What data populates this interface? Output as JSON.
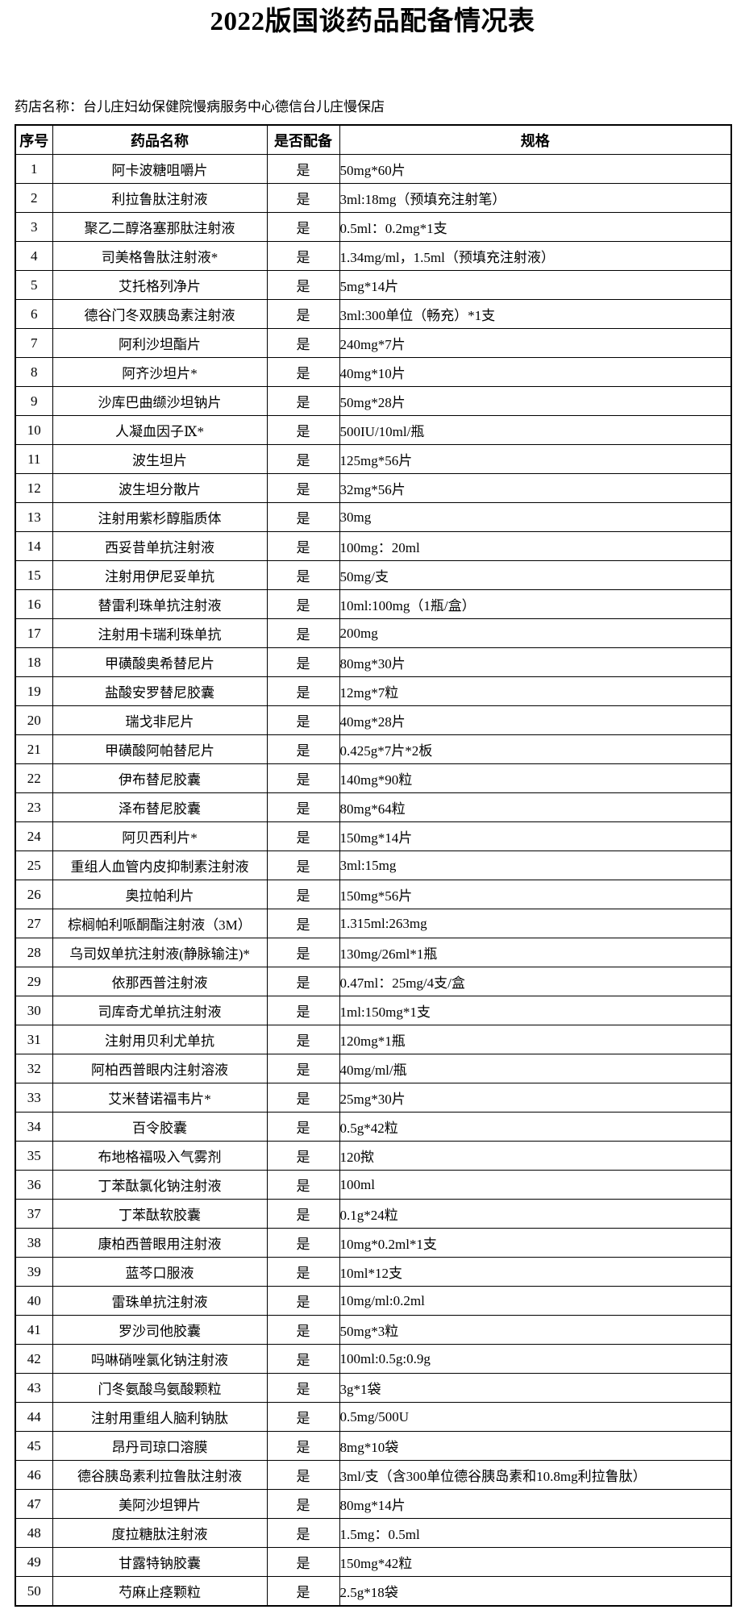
{
  "title": "2022版国谈药品配备情况表",
  "pharmacy_line": "药店名称：台儿庄妇幼保健院慢病服务中心德信台儿庄慢保店",
  "table": {
    "headers": [
      "序号",
      "药品名称",
      "是否配备",
      "规格"
    ],
    "rows": [
      {
        "no": "1",
        "name": "阿卡波糖咀嚼片",
        "equipped": "是",
        "spec": "50mg*60片"
      },
      {
        "no": "2",
        "name": "利拉鲁肽注射液",
        "equipped": "是",
        "spec": "3ml:18mg（预填充注射笔）"
      },
      {
        "no": "3",
        "name": "聚乙二醇洛塞那肽注射液",
        "equipped": "是",
        "spec": "0.5ml：0.2mg*1支"
      },
      {
        "no": "4",
        "name": "司美格鲁肽注射液*",
        "equipped": "是",
        "spec": "1.34mg/ml，1.5ml（预填充注射液）"
      },
      {
        "no": "5",
        "name": "艾托格列净片",
        "equipped": "是",
        "spec": "5mg*14片"
      },
      {
        "no": "6",
        "name": "德谷门冬双胰岛素注射液",
        "equipped": "是",
        "spec": "3ml:300单位（畅充）*1支"
      },
      {
        "no": "7",
        "name": "阿利沙坦酯片",
        "equipped": "是",
        "spec": "240mg*7片"
      },
      {
        "no": "8",
        "name": "阿齐沙坦片*",
        "equipped": "是",
        "spec": "40mg*10片"
      },
      {
        "no": "9",
        "name": "沙库巴曲缬沙坦钠片",
        "equipped": "是",
        "spec": "50mg*28片"
      },
      {
        "no": "10",
        "name": "人凝血因子Ⅸ*",
        "equipped": "是",
        "spec": "500IU/10ml/瓶"
      },
      {
        "no": "11",
        "name": "波生坦片",
        "equipped": "是",
        "spec": "125mg*56片"
      },
      {
        "no": "12",
        "name": "波生坦分散片",
        "equipped": "是",
        "spec": "32mg*56片"
      },
      {
        "no": "13",
        "name": "注射用紫杉醇脂质体",
        "equipped": "是",
        "spec": "30mg"
      },
      {
        "no": "14",
        "name": "西妥昔单抗注射液",
        "equipped": "是",
        "spec": "100mg：20ml"
      },
      {
        "no": "15",
        "name": "注射用伊尼妥单抗",
        "equipped": "是",
        "spec": "50mg/支"
      },
      {
        "no": "16",
        "name": "替雷利珠单抗注射液",
        "equipped": "是",
        "spec": "10ml:100mg（1瓶/盒）"
      },
      {
        "no": "17",
        "name": "注射用卡瑞利珠单抗",
        "equipped": "是",
        "spec": "200mg"
      },
      {
        "no": "18",
        "name": "甲磺酸奥希替尼片",
        "equipped": "是",
        "spec": "80mg*30片"
      },
      {
        "no": "19",
        "name": "盐酸安罗替尼胶囊",
        "equipped": "是",
        "spec": "12mg*7粒"
      },
      {
        "no": "20",
        "name": "瑞戈非尼片",
        "equipped": "是",
        "spec": "40mg*28片"
      },
      {
        "no": "21",
        "name": "甲磺酸阿帕替尼片",
        "equipped": "是",
        "spec": "0.425g*7片*2板"
      },
      {
        "no": "22",
        "name": "伊布替尼胶囊",
        "equipped": "是",
        "spec": "140mg*90粒"
      },
      {
        "no": "23",
        "name": "泽布替尼胶囊",
        "equipped": "是",
        "spec": "80mg*64粒"
      },
      {
        "no": "24",
        "name": "阿贝西利片*",
        "equipped": "是",
        "spec": "150mg*14片"
      },
      {
        "no": "25",
        "name": "重组人血管内皮抑制素注射液",
        "equipped": "是",
        "spec": "3ml:15mg"
      },
      {
        "no": "26",
        "name": "奥拉帕利片",
        "equipped": "是",
        "spec": "150mg*56片"
      },
      {
        "no": "27",
        "name": "棕榈帕利哌酮酯注射液（3M）",
        "equipped": "是",
        "spec": "1.315ml:263mg"
      },
      {
        "no": "28",
        "name": "乌司奴单抗注射液(静脉输注)*",
        "equipped": "是",
        "spec": "130mg/26ml*1瓶"
      },
      {
        "no": "29",
        "name": "依那西普注射液",
        "equipped": "是",
        "spec": "0.47ml：25mg/4支/盒"
      },
      {
        "no": "30",
        "name": "司库奇尤单抗注射液",
        "equipped": "是",
        "spec": "1ml:150mg*1支"
      },
      {
        "no": "31",
        "name": "注射用贝利尤单抗",
        "equipped": "是",
        "spec": "120mg*1瓶"
      },
      {
        "no": "32",
        "name": "阿柏西普眼内注射溶液",
        "equipped": "是",
        "spec": "40mg/ml/瓶"
      },
      {
        "no": "33",
        "name": "艾米替诺福韦片*",
        "equipped": "是",
        "spec": "25mg*30片"
      },
      {
        "no": "34",
        "name": "百令胶囊",
        "equipped": "是",
        "spec": "0.5g*42粒"
      },
      {
        "no": "35",
        "name": "布地格福吸入气雾剂",
        "equipped": "是",
        "spec": "120揿"
      },
      {
        "no": "36",
        "name": "丁苯酞氯化钠注射液",
        "equipped": "是",
        "spec": "100ml"
      },
      {
        "no": "37",
        "name": "丁苯酞软胶囊",
        "equipped": "是",
        "spec": "0.1g*24粒"
      },
      {
        "no": "38",
        "name": "康柏西普眼用注射液",
        "equipped": "是",
        "spec": "10mg*0.2ml*1支"
      },
      {
        "no": "39",
        "name": "蓝芩口服液",
        "equipped": "是",
        "spec": "10ml*12支"
      },
      {
        "no": "40",
        "name": "雷珠单抗注射液",
        "equipped": "是",
        "spec": "10mg/ml:0.2ml"
      },
      {
        "no": "41",
        "name": "罗沙司他胶囊",
        "equipped": "是",
        "spec": "50mg*3粒"
      },
      {
        "no": "42",
        "name": "吗啉硝唑氯化钠注射液",
        "equipped": "是",
        "spec": "100ml:0.5g:0.9g"
      },
      {
        "no": "43",
        "name": "门冬氨酸鸟氨酸颗粒",
        "equipped": "是",
        "spec": "3g*1袋"
      },
      {
        "no": "44",
        "name": "注射用重组人脑利钠肽",
        "equipped": "是",
        "spec": "0.5mg/500U"
      },
      {
        "no": "45",
        "name": "昂丹司琼口溶膜",
        "equipped": "是",
        "spec": "8mg*10袋"
      },
      {
        "no": "46",
        "name": "德谷胰岛素利拉鲁肽注射液",
        "equipped": "是",
        "spec": "3ml/支（含300单位德谷胰岛素和10.8mg利拉鲁肽）"
      },
      {
        "no": "47",
        "name": "美阿沙坦钾片",
        "equipped": "是",
        "spec": "80mg*14片"
      },
      {
        "no": "48",
        "name": "度拉糖肽注射液",
        "equipped": "是",
        "spec": "1.5mg：0.5ml"
      },
      {
        "no": "49",
        "name": "甘露特钠胶囊",
        "equipped": "是",
        "spec": "150mg*42粒"
      },
      {
        "no": "50",
        "name": "芍麻止痉颗粒",
        "equipped": "是",
        "spec": "2.5g*18袋"
      }
    ]
  }
}
